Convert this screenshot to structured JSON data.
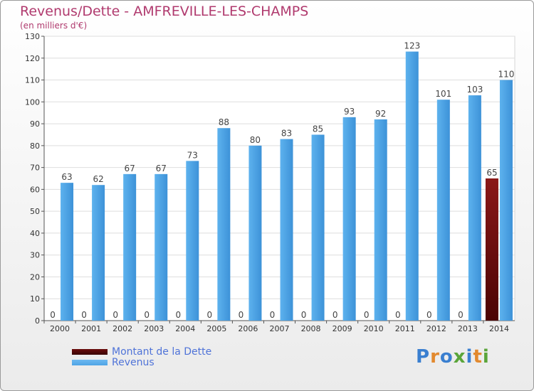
{
  "header": {
    "title": "Revenus/Dette - AMFREVILLE-LES-CHAMPS",
    "subtitle": "(en milliers d'€)"
  },
  "logo": {
    "text": "Proxiti",
    "letter_colors": [
      "#3a7fd0",
      "#e2892e",
      "#3a7fd0",
      "#5aa53a",
      "#3a7fd0",
      "#e2892e",
      "#5aa53a"
    ]
  },
  "colors": {
    "debt": "#6b0c0c",
    "revenue": "#4ea4e6",
    "title": "#b03a6e",
    "legend_text": "#4f73d8"
  },
  "chart_data": {
    "type": "bar",
    "categories": [
      "2000",
      "2001",
      "2002",
      "2003",
      "2004",
      "2005",
      "2006",
      "2007",
      "2008",
      "2009",
      "2010",
      "2011",
      "2012",
      "2013",
      "2014"
    ],
    "series": [
      {
        "name": "Montant de la Dette",
        "values": [
          0,
          0,
          0,
          0,
          0,
          0,
          0,
          0,
          0,
          0,
          0,
          0,
          0,
          0,
          65
        ]
      },
      {
        "name": "Revenus",
        "values": [
          63,
          62,
          67,
          67,
          73,
          88,
          80,
          83,
          85,
          93,
          92,
          123,
          101,
          103,
          110
        ]
      }
    ],
    "yticks": [
      0,
      10,
      20,
      30,
      40,
      50,
      60,
      70,
      80,
      90,
      100,
      110,
      120,
      130
    ],
    "ylim": [
      0,
      130
    ],
    "grid": true,
    "legend": "bottom-left"
  }
}
